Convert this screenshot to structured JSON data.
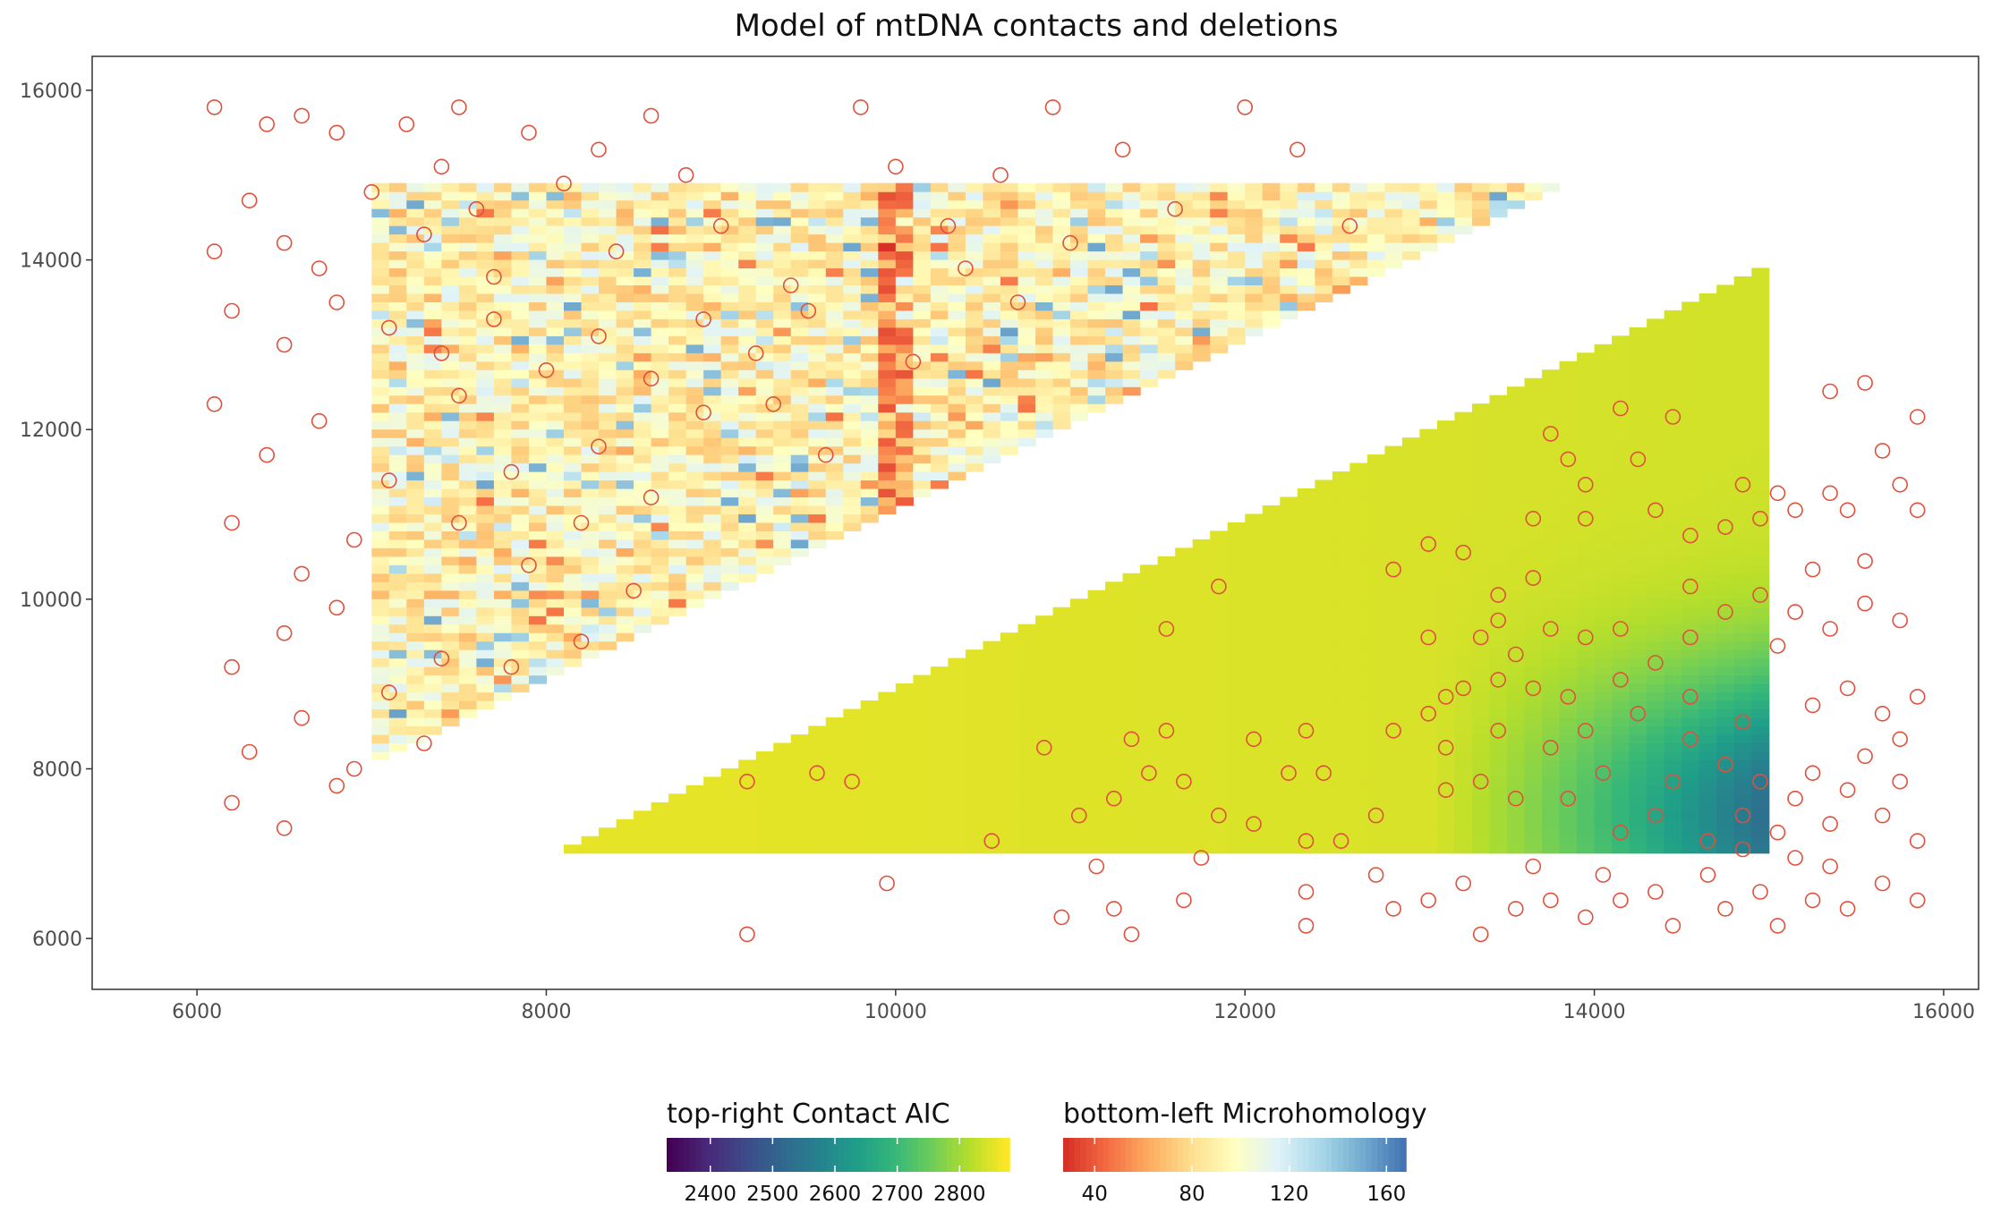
{
  "chart_data": {
    "type": "heatmap",
    "title": "Model of mtDNA contacts and deletions",
    "xlabel": "",
    "ylabel": "",
    "xlim": [
      5400,
      16200
    ],
    "ylim": [
      5400,
      16400
    ],
    "x_ticks": [
      6000,
      8000,
      10000,
      12000,
      14000,
      16000
    ],
    "y_ticks": [
      6000,
      8000,
      10000,
      12000,
      14000,
      16000
    ],
    "x_tick_labels": [
      "6000",
      "8000",
      "10000",
      "12000",
      "14000",
      "16000"
    ],
    "y_tick_labels": [
      "6000",
      "8000",
      "10000",
      "12000",
      "14000",
      "16000"
    ],
    "grid": false,
    "panel_border": true,
    "layers": [
      {
        "name": "top-right Contact AIC",
        "region": "upper-left triangle",
        "x_range": [
          5900,
          14900
        ],
        "y_range": [
          7000,
          15900
        ],
        "bin_size": 100,
        "color_scale": "viridis",
        "value_range": [
          2330,
          2880
        ]
      },
      {
        "name": "bottom-left Microhomology",
        "region": "lower-right triangle",
        "x_range": [
          7000,
          15900
        ],
        "y_range": [
          5900,
          14800
        ],
        "bin_size": 100,
        "color_scale": "RdYlBu",
        "value_range": [
          27,
          168
        ]
      }
    ],
    "deletion_markers": {
      "shape": "open circle",
      "color": "#e0503b",
      "upper_points": [
        [
          6100,
          15800
        ],
        [
          6100,
          14100
        ],
        [
          6300,
          14700
        ],
        [
          6400,
          15600
        ],
        [
          6500,
          14200
        ],
        [
          6600,
          15700
        ],
        [
          6800,
          15500
        ],
        [
          6700,
          13900
        ],
        [
          7000,
          14800
        ],
        [
          7200,
          15600
        ],
        [
          7300,
          14300
        ],
        [
          7400,
          15100
        ],
        [
          7500,
          15800
        ],
        [
          7600,
          14600
        ],
        [
          7700,
          13800
        ],
        [
          7900,
          15500
        ],
        [
          8100,
          14900
        ],
        [
          8300,
          15300
        ],
        [
          8400,
          14100
        ],
        [
          8600,
          15700
        ],
        [
          8800,
          15000
        ],
        [
          9000,
          14400
        ],
        [
          6200,
          13400
        ],
        [
          6500,
          13000
        ],
        [
          6800,
          13500
        ],
        [
          7100,
          13200
        ],
        [
          7400,
          12900
        ],
        [
          7700,
          13300
        ],
        [
          8000,
          12700
        ],
        [
          8300,
          13100
        ],
        [
          8600,
          12600
        ],
        [
          8900,
          13300
        ],
        [
          9200,
          12900
        ],
        [
          9500,
          13400
        ],
        [
          9800,
          15800
        ],
        [
          10000,
          15100
        ],
        [
          10300,
          14400
        ],
        [
          10600,
          15000
        ],
        [
          10900,
          15800
        ],
        [
          11000,
          14200
        ],
        [
          11300,
          15300
        ],
        [
          11600,
          14600
        ],
        [
          12000,
          15800
        ],
        [
          12300,
          15300
        ],
        [
          12600,
          14400
        ],
        [
          6100,
          12300
        ],
        [
          6400,
          11700
        ],
        [
          6700,
          12100
        ],
        [
          7100,
          11400
        ],
        [
          7500,
          12400
        ],
        [
          7800,
          11500
        ],
        [
          8300,
          11800
        ],
        [
          8600,
          11200
        ],
        [
          9300,
          12300
        ],
        [
          9600,
          11700
        ],
        [
          6200,
          10900
        ],
        [
          6600,
          10300
        ],
        [
          6900,
          10700
        ],
        [
          7500,
          10900
        ],
        [
          7900,
          10400
        ],
        [
          8200,
          10900
        ],
        [
          8500,
          10100
        ],
        [
          6200,
          9200
        ],
        [
          6500,
          9600
        ],
        [
          6800,
          9900
        ],
        [
          7100,
          8900
        ],
        [
          7400,
          9300
        ],
        [
          7800,
          9200
        ],
        [
          8200,
          9500
        ],
        [
          6300,
          8200
        ],
        [
          6600,
          8600
        ],
        [
          6900,
          8000
        ],
        [
          7300,
          8300
        ],
        [
          6200,
          7600
        ],
        [
          6500,
          7300
        ],
        [
          6800,
          7800
        ],
        [
          10400,
          13900
        ],
        [
          10700,
          13500
        ],
        [
          10100,
          12800
        ],
        [
          9400,
          13700
        ],
        [
          8900,
          12200
        ]
      ],
      "lower_points": [
        [
          9150,
          7850
        ],
        [
          9550,
          7950
        ],
        [
          9750,
          7850
        ],
        [
          9950,
          6650
        ],
        [
          9150,
          6050
        ],
        [
          10550,
          7150
        ],
        [
          10850,
          8250
        ],
        [
          11050,
          7450
        ],
        [
          11150,
          6850
        ],
        [
          11250,
          7650
        ],
        [
          11350,
          8350
        ],
        [
          11450,
          7950
        ],
        [
          11550,
          8450
        ],
        [
          11650,
          7850
        ],
        [
          11750,
          6950
        ],
        [
          11850,
          7450
        ],
        [
          11250,
          6350
        ],
        [
          11650,
          6450
        ],
        [
          10950,
          6250
        ],
        [
          11350,
          6050
        ],
        [
          12050,
          8350
        ],
        [
          12250,
          7950
        ],
        [
          12350,
          8450
        ],
        [
          12450,
          7950
        ],
        [
          12350,
          7150
        ],
        [
          12550,
          7150
        ],
        [
          12350,
          6550
        ],
        [
          12350,
          6150
        ],
        [
          12050,
          7350
        ],
        [
          11850,
          10150
        ],
        [
          11550,
          9650
        ],
        [
          12850,
          10350
        ],
        [
          13050,
          10650
        ],
        [
          13250,
          10550
        ],
        [
          13050,
          9550
        ],
        [
          12850,
          8450
        ],
        [
          12850,
          6350
        ],
        [
          13050,
          6450
        ],
        [
          13150,
          8850
        ],
        [
          13350,
          9550
        ],
        [
          13450,
          10050
        ],
        [
          13650,
          10950
        ],
        [
          13850,
          11650
        ],
        [
          13750,
          11950
        ],
        [
          13950,
          10950
        ],
        [
          14150,
          12250
        ],
        [
          14250,
          11650
        ],
        [
          14450,
          12150
        ],
        [
          14550,
          10750
        ],
        [
          14750,
          10850
        ],
        [
          14850,
          11350
        ],
        [
          14950,
          10950
        ],
        [
          15050,
          11250
        ],
        [
          15150,
          11050
        ],
        [
          15250,
          10350
        ],
        [
          15350,
          12450
        ],
        [
          15450,
          11050
        ],
        [
          15550,
          12550
        ],
        [
          15650,
          11750
        ],
        [
          15750,
          11350
        ],
        [
          15850,
          12150
        ],
        [
          15850,
          11050
        ],
        [
          15350,
          11250
        ],
        [
          14350,
          11050
        ],
        [
          13650,
          10250
        ],
        [
          13450,
          9750
        ],
        [
          13550,
          9350
        ],
        [
          13750,
          9650
        ],
        [
          13950,
          9550
        ],
        [
          14150,
          9650
        ],
        [
          14350,
          9250
        ],
        [
          14550,
          9550
        ],
        [
          14750,
          9850
        ],
        [
          14950,
          10050
        ],
        [
          15150,
          9850
        ],
        [
          15350,
          9650
        ],
        [
          15550,
          9950
        ],
        [
          15750,
          9750
        ],
        [
          13150,
          8250
        ],
        [
          13350,
          7850
        ],
        [
          13450,
          8450
        ],
        [
          13550,
          7650
        ],
        [
          13650,
          8950
        ],
        [
          13750,
          8250
        ],
        [
          13850,
          7650
        ],
        [
          13950,
          8450
        ],
        [
          14050,
          7950
        ],
        [
          14150,
          7250
        ],
        [
          14250,
          8650
        ],
        [
          14350,
          7450
        ],
        [
          14450,
          7850
        ],
        [
          14550,
          8350
        ],
        [
          14650,
          7150
        ],
        [
          14750,
          8050
        ],
        [
          14850,
          7450
        ],
        [
          14950,
          7850
        ],
        [
          15050,
          7250
        ],
        [
          15150,
          7650
        ],
        [
          15250,
          7950
        ],
        [
          15350,
          7350
        ],
        [
          15450,
          7750
        ],
        [
          15550,
          8150
        ],
        [
          15650,
          7450
        ],
        [
          15750,
          7850
        ],
        [
          15850,
          7150
        ],
        [
          13250,
          6650
        ],
        [
          13350,
          6050
        ],
        [
          13550,
          6350
        ],
        [
          13650,
          6850
        ],
        [
          13750,
          6450
        ],
        [
          13950,
          6250
        ],
        [
          14050,
          6750
        ],
        [
          14150,
          6450
        ],
        [
          14350,
          6550
        ],
        [
          14450,
          6150
        ],
        [
          14650,
          6750
        ],
        [
          14750,
          6350
        ],
        [
          14950,
          6550
        ],
        [
          15050,
          6150
        ],
        [
          15250,
          6450
        ],
        [
          15450,
          6350
        ],
        [
          15650,
          6650
        ],
        [
          15850,
          6450
        ],
        [
          15350,
          6850
        ],
        [
          15150,
          6950
        ],
        [
          14850,
          7050
        ],
        [
          15650,
          8650
        ],
        [
          15750,
          8350
        ],
        [
          15850,
          8850
        ],
        [
          15450,
          8950
        ],
        [
          15250,
          8750
        ],
        [
          14850,
          8550
        ],
        [
          14550,
          8850
        ],
        [
          14150,
          9050
        ],
        [
          13850,
          8850
        ],
        [
          13450,
          9050
        ],
        [
          13250,
          8950
        ],
        [
          13950,
          11350
        ],
        [
          15550,
          10450
        ],
        [
          15050,
          9450
        ],
        [
          14550,
          10150
        ],
        [
          12750,
          7450
        ],
        [
          12750,
          6750
        ],
        [
          13150,
          7750
        ],
        [
          13050,
          8650
        ]
      ]
    }
  },
  "legend": {
    "aic": {
      "title": "top-right Contact AIC",
      "scale": "viridis",
      "value_range": [
        2330,
        2880
      ],
      "ticks": [
        2400,
        2500,
        2600,
        2700,
        2800
      ],
      "tick_labels": [
        "2400",
        "2500",
        "2600",
        "2700",
        "2800"
      ]
    },
    "microhomology": {
      "title": "bottom-left Microhomology",
      "scale": "RdYlBu",
      "value_range": [
        27,
        168
      ],
      "ticks": [
        40,
        80,
        120,
        160
      ],
      "tick_labels": [
        "40",
        "80",
        "120",
        "160"
      ]
    }
  },
  "colors": {
    "background": "#ffffff",
    "panel_border": "#333333",
    "marker": "#e0503b",
    "tick_label": "#4d4d4d"
  }
}
